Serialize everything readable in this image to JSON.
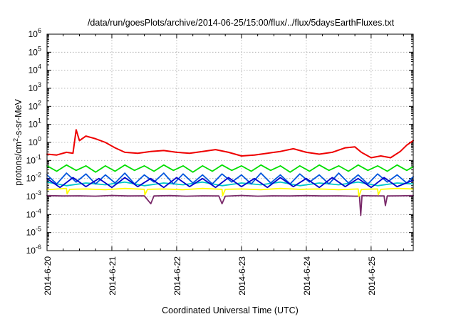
{
  "chart_data": {
    "type": "line",
    "title": "/data/run/goesPlots/archive/2014-06-25/15:00/flux/../flux/5daysEarthFluxes.txt",
    "xlabel": "Coordinated Universal Time (UTC)",
    "ylabel": "protons/cm²-s-sr-MeV",
    "ylabel_parts": {
      "before": "protons/cm",
      "sup": "2",
      "after": "-s-sr-MeV"
    },
    "yscale": "log",
    "ylim_exponent": [
      -6,
      6
    ],
    "y_tick_exponents": [
      -6,
      -5,
      -4,
      -3,
      -2,
      -1,
      0,
      1,
      2,
      3,
      4,
      5,
      6
    ],
    "y_tick_base": "10",
    "xlim_days": [
      0,
      5.65
    ],
    "x_ticks": [
      {
        "day": 0,
        "label": "2014-6-20"
      },
      {
        "day": 1,
        "label": "2014-6-21"
      },
      {
        "day": 2,
        "label": "2014-6-22"
      },
      {
        "day": 3,
        "label": "2014-6-23"
      },
      {
        "day": 4,
        "label": "2014-6-24"
      },
      {
        "day": 5,
        "label": "2014-6-25"
      }
    ],
    "grid": true,
    "series_note": "x in days since 2014-6-20 00:00 UTC; y in log10(protons/cm2-s-sr-MeV)",
    "series": [
      {
        "color": "#7a2a6a",
        "points": [
          [
            0.0,
            -2.95
          ],
          [
            0.25,
            -2.97
          ],
          [
            0.5,
            -2.96
          ],
          [
            0.75,
            -2.98
          ],
          [
            1.0,
            -2.94
          ],
          [
            1.25,
            -2.97
          ],
          [
            1.5,
            -2.96
          ],
          [
            1.6,
            -3.4
          ],
          [
            1.65,
            -2.97
          ],
          [
            1.9,
            -2.95
          ],
          [
            2.15,
            -2.98
          ],
          [
            2.4,
            -2.96
          ],
          [
            2.65,
            -2.97
          ],
          [
            2.7,
            -3.4
          ],
          [
            2.75,
            -2.98
          ],
          [
            3.0,
            -2.94
          ],
          [
            3.25,
            -2.98
          ],
          [
            3.5,
            -2.96
          ],
          [
            3.75,
            -2.97
          ],
          [
            4.0,
            -2.95
          ],
          [
            4.25,
            -2.97
          ],
          [
            4.5,
            -2.96
          ],
          [
            4.75,
            -2.98
          ],
          [
            4.82,
            -2.98
          ],
          [
            4.84,
            -4.05
          ],
          [
            4.86,
            -2.95
          ],
          [
            5.0,
            -2.96
          ],
          [
            5.2,
            -2.97
          ],
          [
            5.22,
            -3.5
          ],
          [
            5.25,
            -2.97
          ],
          [
            5.45,
            -2.96
          ],
          [
            5.65,
            -2.95
          ]
        ]
      },
      {
        "color": "#ffff00",
        "points": [
          [
            0.0,
            -2.62
          ],
          [
            0.3,
            -2.55
          ],
          [
            0.31,
            -2.85
          ],
          [
            0.35,
            -2.6
          ],
          [
            0.6,
            -2.58
          ],
          [
            0.9,
            -2.62
          ],
          [
            1.2,
            -2.55
          ],
          [
            1.5,
            -2.6
          ],
          [
            1.51,
            -2.9
          ],
          [
            1.55,
            -2.6
          ],
          [
            1.8,
            -2.58
          ],
          [
            2.1,
            -2.62
          ],
          [
            2.4,
            -2.55
          ],
          [
            2.7,
            -2.6
          ],
          [
            2.71,
            -2.95
          ],
          [
            2.75,
            -2.6
          ],
          [
            3.0,
            -2.58
          ],
          [
            3.3,
            -2.62
          ],
          [
            3.6,
            -2.55
          ],
          [
            3.9,
            -2.6
          ],
          [
            4.2,
            -2.58
          ],
          [
            4.5,
            -2.62
          ],
          [
            4.8,
            -2.58
          ],
          [
            4.81,
            -3.0
          ],
          [
            4.85,
            -2.6
          ],
          [
            5.1,
            -2.58
          ],
          [
            5.11,
            -2.9
          ],
          [
            5.15,
            -2.6
          ],
          [
            5.4,
            -2.55
          ],
          [
            5.65,
            -2.58
          ]
        ]
      },
      {
        "color": "#00c8c8",
        "points": [
          [
            0.0,
            -2.2
          ],
          [
            0.3,
            -2.4
          ],
          [
            0.6,
            -2.25
          ],
          [
            0.9,
            -2.35
          ],
          [
            1.2,
            -2.2
          ],
          [
            1.5,
            -2.4
          ],
          [
            1.8,
            -2.25
          ],
          [
            2.1,
            -2.35
          ],
          [
            2.4,
            -2.2
          ],
          [
            2.7,
            -2.4
          ],
          [
            3.0,
            -2.25
          ],
          [
            3.3,
            -2.35
          ],
          [
            3.6,
            -2.2
          ],
          [
            3.9,
            -2.4
          ],
          [
            4.2,
            -2.25
          ],
          [
            4.5,
            -2.35
          ],
          [
            4.8,
            -2.2
          ],
          [
            5.1,
            -2.4
          ],
          [
            5.4,
            -2.25
          ],
          [
            5.65,
            -2.3
          ]
        ]
      },
      {
        "color": "#0055dd",
        "points": [
          [
            0.0,
            -1.8
          ],
          [
            0.15,
            -2.3
          ],
          [
            0.3,
            -1.7
          ],
          [
            0.45,
            -2.2
          ],
          [
            0.6,
            -1.75
          ],
          [
            0.75,
            -2.3
          ],
          [
            0.9,
            -1.8
          ],
          [
            1.05,
            -2.25
          ],
          [
            1.2,
            -1.7
          ],
          [
            1.35,
            -2.3
          ],
          [
            1.5,
            -1.8
          ],
          [
            1.65,
            -2.2
          ],
          [
            1.8,
            -1.7
          ],
          [
            1.95,
            -2.3
          ],
          [
            2.1,
            -1.75
          ],
          [
            2.25,
            -2.25
          ],
          [
            2.4,
            -1.8
          ],
          [
            2.55,
            -2.3
          ],
          [
            2.7,
            -1.75
          ],
          [
            2.85,
            -2.2
          ],
          [
            3.0,
            -1.8
          ],
          [
            3.15,
            -2.3
          ],
          [
            3.3,
            -1.7
          ],
          [
            3.45,
            -2.25
          ],
          [
            3.6,
            -1.8
          ],
          [
            3.75,
            -2.3
          ],
          [
            3.9,
            -1.75
          ],
          [
            4.05,
            -2.2
          ],
          [
            4.2,
            -1.8
          ],
          [
            4.35,
            -2.3
          ],
          [
            4.5,
            -1.7
          ],
          [
            4.65,
            -2.25
          ],
          [
            4.8,
            -1.8
          ],
          [
            4.95,
            -2.3
          ],
          [
            5.1,
            -1.75
          ],
          [
            5.25,
            -2.2
          ],
          [
            5.4,
            -1.8
          ],
          [
            5.55,
            -2.25
          ],
          [
            5.65,
            -1.9
          ]
        ]
      },
      {
        "color": "#0000cc",
        "points": [
          [
            0.0,
            -2.0
          ],
          [
            0.2,
            -2.5
          ],
          [
            0.4,
            -1.95
          ],
          [
            0.6,
            -2.45
          ],
          [
            0.8,
            -2.0
          ],
          [
            1.0,
            -2.5
          ],
          [
            1.2,
            -1.95
          ],
          [
            1.4,
            -2.45
          ],
          [
            1.6,
            -2.0
          ],
          [
            1.8,
            -2.5
          ],
          [
            2.0,
            -1.95
          ],
          [
            2.2,
            -2.45
          ],
          [
            2.4,
            -2.0
          ],
          [
            2.6,
            -2.5
          ],
          [
            2.8,
            -1.95
          ],
          [
            3.0,
            -2.45
          ],
          [
            3.2,
            -2.0
          ],
          [
            3.4,
            -2.5
          ],
          [
            3.6,
            -1.95
          ],
          [
            3.8,
            -2.45
          ],
          [
            4.0,
            -2.0
          ],
          [
            4.2,
            -2.5
          ],
          [
            4.4,
            -1.95
          ],
          [
            4.6,
            -2.45
          ],
          [
            4.8,
            -2.0
          ],
          [
            5.0,
            -2.5
          ],
          [
            5.2,
            -1.95
          ],
          [
            5.4,
            -2.45
          ],
          [
            5.65,
            -2.1
          ]
        ]
      },
      {
        "color": "#00dd00",
        "points": [
          [
            0.0,
            -1.3
          ],
          [
            0.15,
            -1.6
          ],
          [
            0.3,
            -1.25
          ],
          [
            0.45,
            -1.55
          ],
          [
            0.6,
            -1.3
          ],
          [
            0.75,
            -1.65
          ],
          [
            0.9,
            -1.3
          ],
          [
            1.05,
            -1.6
          ],
          [
            1.2,
            -1.25
          ],
          [
            1.35,
            -1.55
          ],
          [
            1.5,
            -1.3
          ],
          [
            1.65,
            -1.6
          ],
          [
            1.8,
            -1.25
          ],
          [
            1.95,
            -1.55
          ],
          [
            2.1,
            -1.3
          ],
          [
            2.25,
            -1.65
          ],
          [
            2.4,
            -1.3
          ],
          [
            2.55,
            -1.6
          ],
          [
            2.7,
            -1.25
          ],
          [
            2.85,
            -1.55
          ],
          [
            3.0,
            -1.3
          ],
          [
            3.15,
            -1.6
          ],
          [
            3.3,
            -1.25
          ],
          [
            3.45,
            -1.55
          ],
          [
            3.6,
            -1.3
          ],
          [
            3.75,
            -1.65
          ],
          [
            3.9,
            -1.3
          ],
          [
            4.05,
            -1.6
          ],
          [
            4.2,
            -1.25
          ],
          [
            4.35,
            -1.55
          ],
          [
            4.5,
            -1.3
          ],
          [
            4.65,
            -1.6
          ],
          [
            4.8,
            -1.25
          ],
          [
            4.95,
            -1.55
          ],
          [
            5.1,
            -1.3
          ],
          [
            5.25,
            -1.6
          ],
          [
            5.4,
            -1.25
          ],
          [
            5.55,
            -1.55
          ],
          [
            5.65,
            -1.35
          ]
        ]
      },
      {
        "color": "#ee0000",
        "points": [
          [
            0.0,
            -0.65
          ],
          [
            0.15,
            -0.7
          ],
          [
            0.3,
            -0.55
          ],
          [
            0.4,
            -0.6
          ],
          [
            0.45,
            0.7
          ],
          [
            0.5,
            0.1
          ],
          [
            0.6,
            0.35
          ],
          [
            0.75,
            0.2
          ],
          [
            0.9,
            0.0
          ],
          [
            1.05,
            -0.3
          ],
          [
            1.2,
            -0.55
          ],
          [
            1.4,
            -0.6
          ],
          [
            1.6,
            -0.5
          ],
          [
            1.8,
            -0.45
          ],
          [
            2.0,
            -0.55
          ],
          [
            2.2,
            -0.6
          ],
          [
            2.4,
            -0.5
          ],
          [
            2.6,
            -0.4
          ],
          [
            2.8,
            -0.55
          ],
          [
            3.0,
            -0.75
          ],
          [
            3.2,
            -0.7
          ],
          [
            3.4,
            -0.6
          ],
          [
            3.6,
            -0.5
          ],
          [
            3.8,
            -0.35
          ],
          [
            4.0,
            -0.55
          ],
          [
            4.2,
            -0.65
          ],
          [
            4.4,
            -0.55
          ],
          [
            4.6,
            -0.3
          ],
          [
            4.75,
            -0.25
          ],
          [
            4.85,
            -0.55
          ],
          [
            5.0,
            -0.85
          ],
          [
            5.15,
            -0.75
          ],
          [
            5.3,
            -0.85
          ],
          [
            5.45,
            -0.5
          ],
          [
            5.55,
            -0.15
          ],
          [
            5.65,
            0.1
          ]
        ]
      }
    ]
  }
}
